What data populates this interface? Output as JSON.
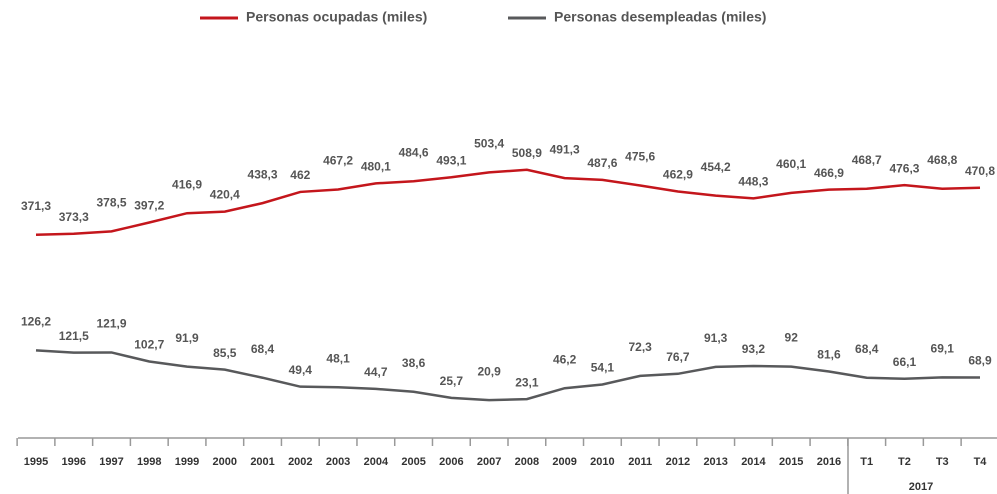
{
  "chart_data": {
    "type": "line",
    "categories": [
      "1995",
      "1996",
      "1997",
      "1998",
      "1999",
      "2000",
      "2001",
      "2002",
      "2003",
      "2004",
      "2005",
      "2006",
      "2007",
      "2008",
      "2009",
      "2010",
      "2011",
      "2012",
      "2013",
      "2014",
      "2015",
      "2016",
      "T1",
      "T2",
      "T3",
      "T4"
    ],
    "group_label": "2017",
    "series": [
      {
        "name": "Personas ocupadas (miles)",
        "color": "#c4161c",
        "values": [
          371.3,
          373.3,
          378.5,
          397.2,
          416.9,
          420.4,
          438.3,
          462,
          467.2,
          480.1,
          484.6,
          493.1,
          503.4,
          508.9,
          491.3,
          487.6,
          475.6,
          462.9,
          454.2,
          448.3,
          460.1,
          466.9,
          468.7,
          476.3,
          468.8,
          470.8
        ],
        "value_labels": [
          "371,3",
          "373,3",
          "378,5",
          "397,2",
          "416,9",
          "420,4",
          "438,3",
          "462",
          "467,2",
          "480,1",
          "484,6",
          "493,1",
          "503,4",
          "508,9",
          "491,3",
          "487,6",
          "475,6",
          "462,9",
          "454,2",
          "448,3",
          "460,1",
          "466,9",
          "468,7",
          "476,3",
          "468,8",
          "470,8"
        ]
      },
      {
        "name": "Personas desempleadas (miles)",
        "color": "#58595b",
        "values": [
          126.2,
          121.5,
          121.9,
          102.7,
          91.9,
          85.5,
          68.4,
          49.4,
          48.1,
          44.7,
          38.6,
          25.7,
          20.9,
          23.1,
          46.2,
          54.1,
          72.3,
          76.7,
          91.3,
          93.2,
          92,
          81.6,
          68.4,
          66.1,
          69.1,
          68.9
        ],
        "value_labels": [
          "126,2",
          "121,5",
          "121,9",
          "102,7",
          "91,9",
          "85,5",
          "68,4",
          "49,4",
          "48,1",
          "44,7",
          "38,6",
          "25,7",
          "20,9",
          "23,1",
          "46,2",
          "54,1",
          "72,3",
          "76,7",
          "91,3",
          "93,2",
          "92",
          "81,6",
          "68,4",
          "66,1",
          "69,1",
          "68,9"
        ]
      }
    ]
  }
}
